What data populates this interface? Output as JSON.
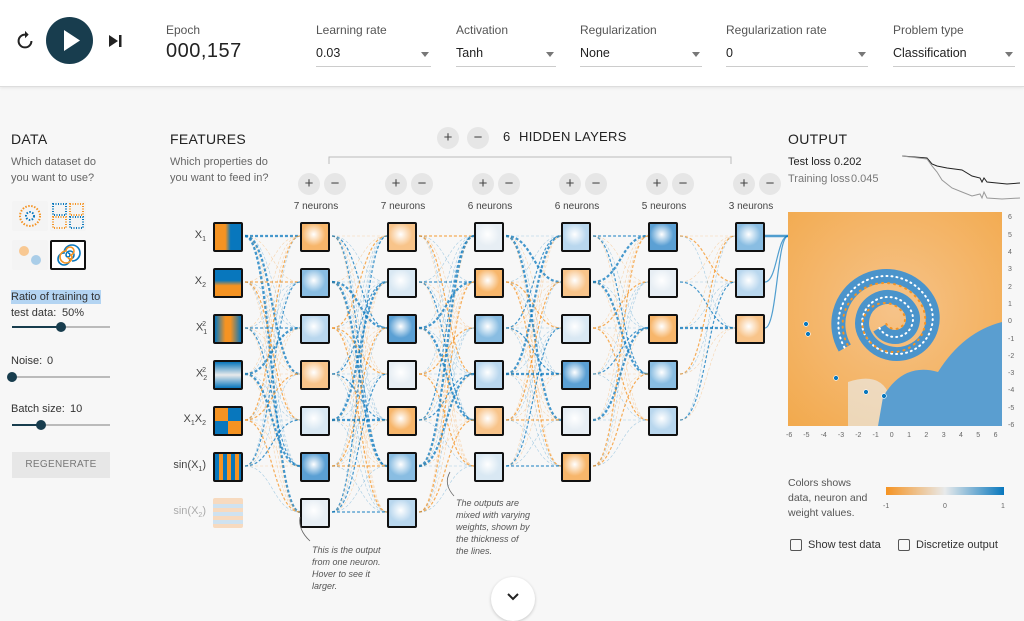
{
  "controls": {
    "epoch_label": "Epoch",
    "epoch_value": "000,157",
    "learning_rate_label": "Learning rate",
    "learning_rate_value": "0.03",
    "activation_label": "Activation",
    "activation_value": "Tanh",
    "regularization_label": "Regularization",
    "regularization_value": "None",
    "regularization_rate_label": "Regularization rate",
    "regularization_rate_value": "0",
    "problem_type_label": "Problem type",
    "problem_type_value": "Classification"
  },
  "data_panel": {
    "title": "DATA",
    "subtitle_1": "Which dataset do",
    "subtitle_2": "you want to use?",
    "ratio_label_1": "Ratio of training to",
    "ratio_label_2": "test data:",
    "ratio_value": "50%",
    "ratio_fraction": 0.5,
    "noise_label": "Noise:",
    "noise_value": "0",
    "noise_fraction": 0.0,
    "batch_label": "Batch size:",
    "batch_value": "10",
    "batch_fraction": 0.3,
    "regenerate_label": "REGENERATE"
  },
  "features": {
    "title": "FEATURES",
    "subtitle_1": "Which properties do",
    "subtitle_2": "you want to feed in?",
    "items": [
      {
        "label": "X",
        "sub": "1",
        "sup": ""
      },
      {
        "label": "X",
        "sub": "2",
        "sup": ""
      },
      {
        "label": "X",
        "sub": "1",
        "sup": "2"
      },
      {
        "label": "X",
        "sub": "2",
        "sup": "2"
      },
      {
        "label": "X",
        "sub": "1",
        "sup": "",
        "label2": "X",
        "sub2": "2"
      },
      {
        "label": "sin(X",
        "sub": "1",
        "sup": "",
        "tail": ")"
      },
      {
        "label": "sin(X",
        "sub": "2",
        "sup": "",
        "tail": ")"
      }
    ]
  },
  "network": {
    "hidden_layers_count": "6",
    "hidden_layers_label": "HIDDEN LAYERS",
    "plus": "+",
    "minus": "−",
    "layers": [
      {
        "neurons_label": "7 neurons",
        "count": 7
      },
      {
        "neurons_label": "7 neurons",
        "count": 7
      },
      {
        "neurons_label": "6 neurons",
        "count": 6
      },
      {
        "neurons_label": "6 neurons",
        "count": 6
      },
      {
        "neurons_label": "5 neurons",
        "count": 5
      },
      {
        "neurons_label": "3 neurons",
        "count": 3
      }
    ],
    "note_neuron": [
      "This is the output",
      "from one neuron.",
      "Hover to see it",
      "larger."
    ],
    "note_weights": [
      "The outputs are",
      "mixed with varying",
      "weights, shown by",
      "the thickness of",
      "the lines."
    ]
  },
  "output": {
    "title": "OUTPUT",
    "test_loss_label": "Test loss",
    "test_loss_value": "0.202",
    "training_loss_label": "Training loss",
    "training_loss_value": "0.045",
    "axis_ticks": [
      "-6",
      "-5",
      "-4",
      "-3",
      "-2",
      "-1",
      "0",
      "1",
      "2",
      "3",
      "4",
      "5",
      "6"
    ],
    "colors_caption_1": "Colors shows",
    "colors_caption_2": "data, neuron and",
    "colors_caption_3": "weight values.",
    "scale_min": "-1",
    "scale_mid": "0",
    "scale_max": "1",
    "show_test_data_label": "Show test data",
    "discretize_label": "Discretize output"
  },
  "colors": {
    "orange": "#f59322",
    "blue": "#0877bd",
    "dark": "#183d4e"
  },
  "icons": {
    "reset": "reset-icon",
    "play": "play-icon",
    "step": "step-forward-icon",
    "expand": "chevron-down-icon"
  }
}
